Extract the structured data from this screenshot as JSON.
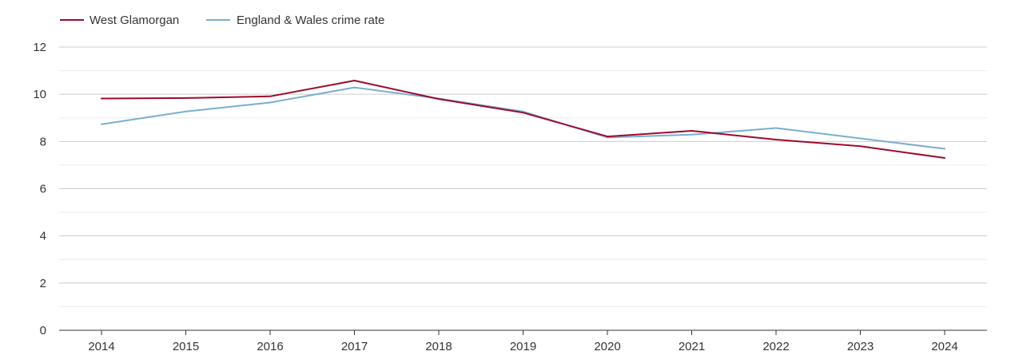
{
  "chart_data": {
    "type": "line",
    "x": [
      "2014",
      "2015",
      "2016",
      "2017",
      "2018",
      "2019",
      "2020",
      "2021",
      "2022",
      "2023",
      "2024"
    ],
    "ylim": [
      0,
      12
    ],
    "yticks": [
      0,
      2,
      4,
      6,
      8,
      10,
      12
    ],
    "grid": true,
    "legend_position": "top-left",
    "series": [
      {
        "name": "West Glamorgan",
        "color": "#9b0a2e",
        "values": [
          9.82,
          9.84,
          9.91,
          10.58,
          9.8,
          9.22,
          8.21,
          8.45,
          8.08,
          7.8,
          7.3
        ]
      },
      {
        "name": "England & Wales crime rate",
        "color": "#7aaed0",
        "values": [
          8.73,
          9.27,
          9.65,
          10.29,
          9.82,
          9.27,
          8.17,
          8.29,
          8.57,
          8.13,
          7.69
        ]
      }
    ]
  }
}
